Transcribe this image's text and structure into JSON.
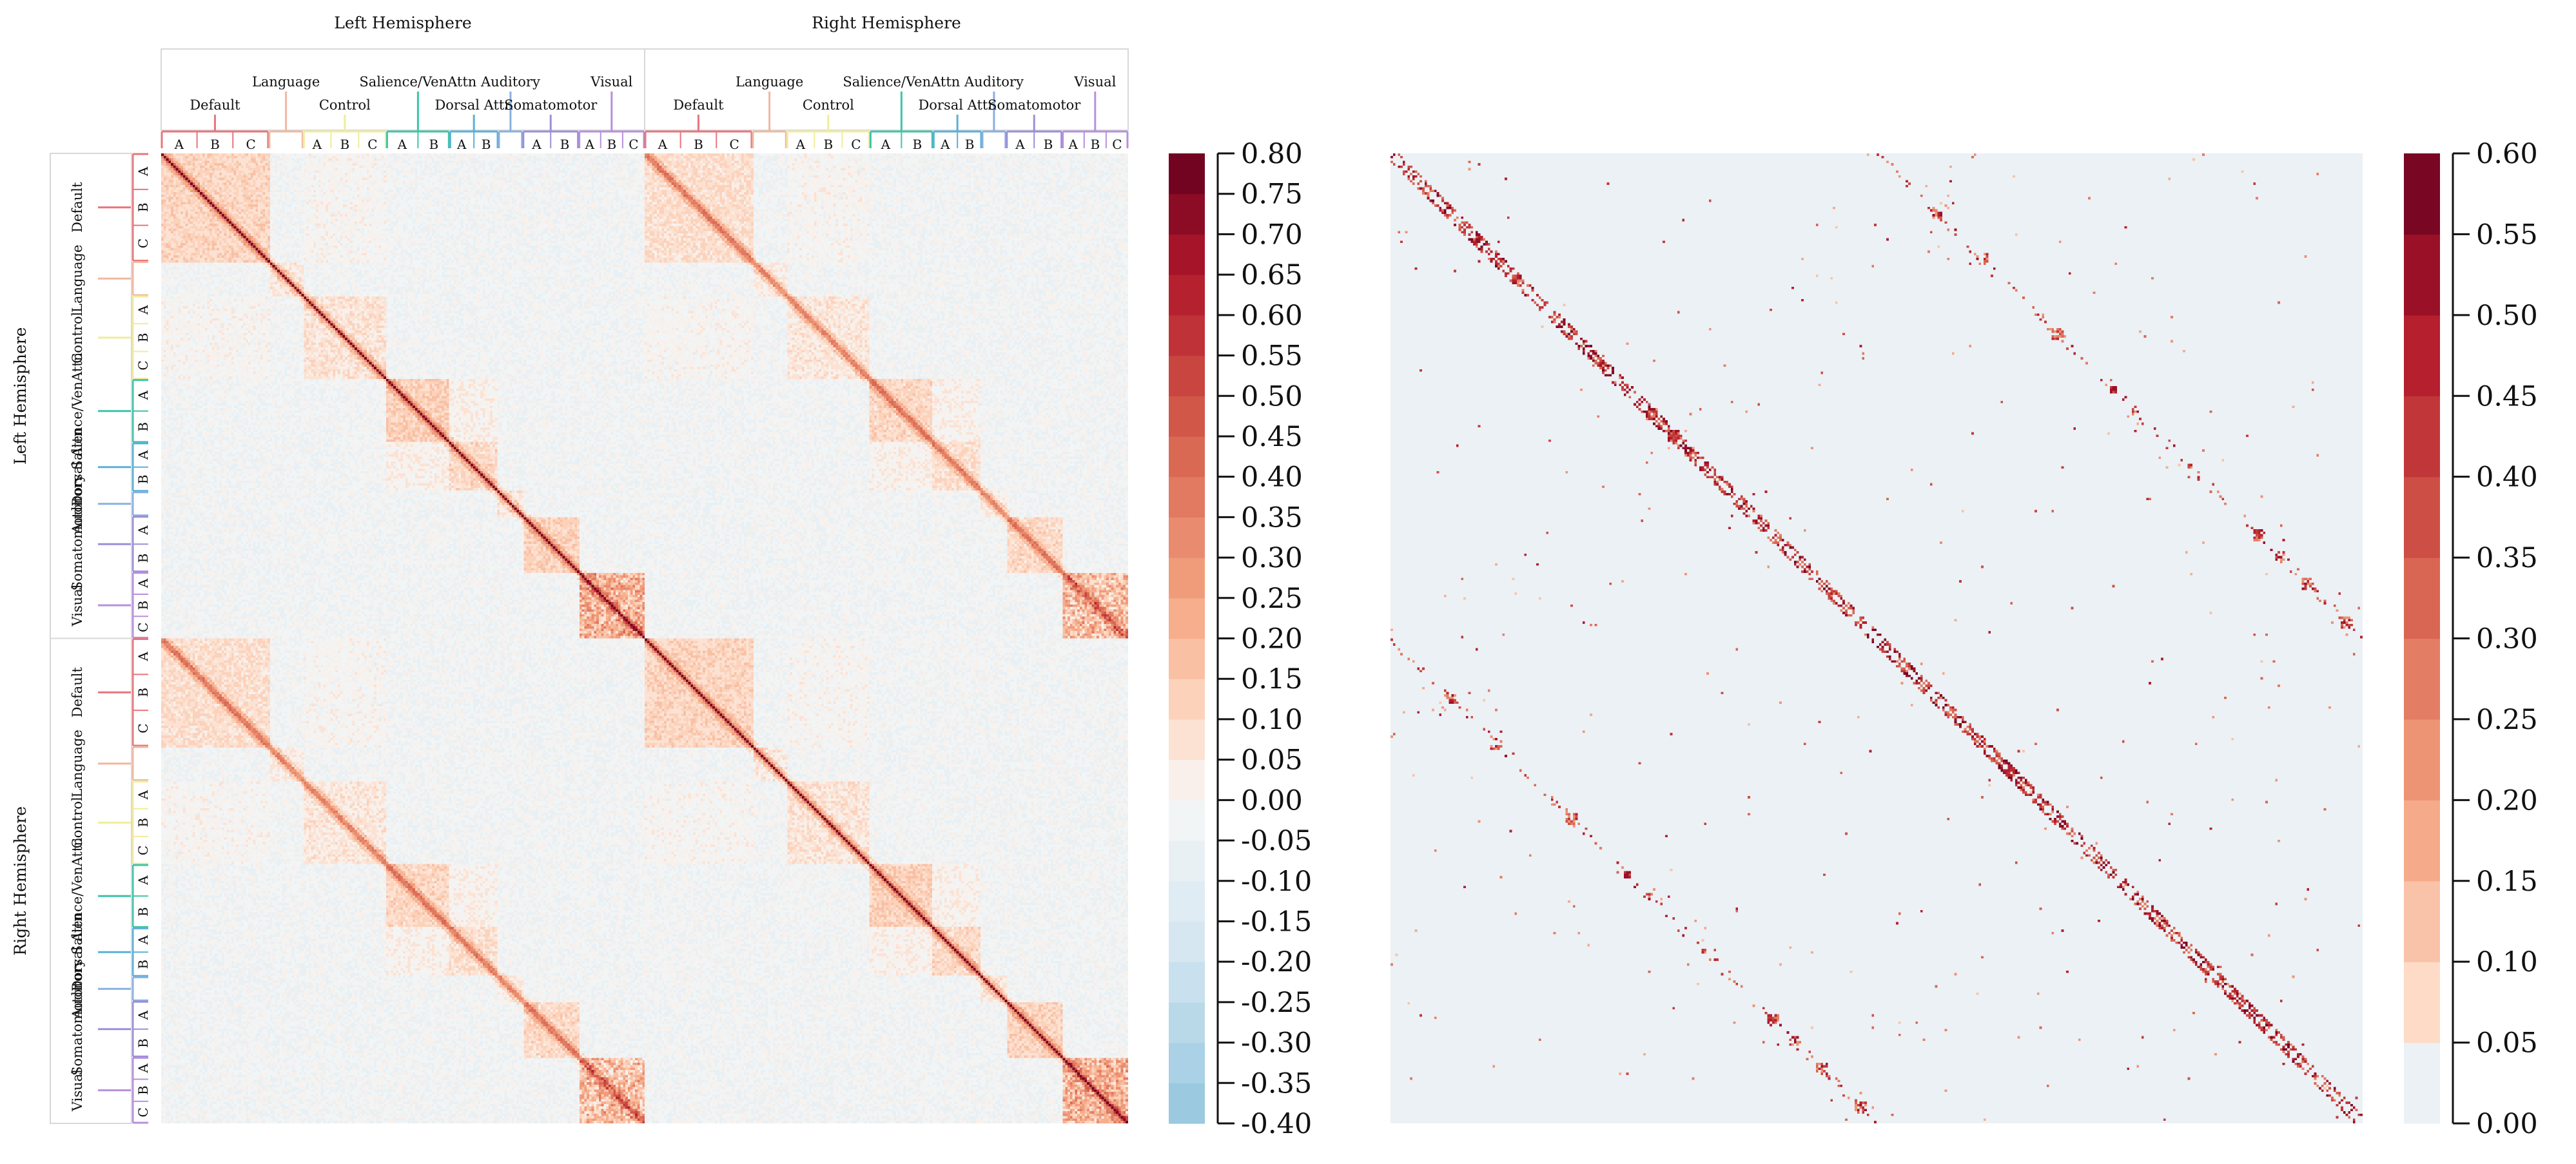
{
  "palette": {
    "Default": "#e8757c",
    "Language": "#f0b8a0",
    "Control": "#f2ec9a",
    "Salience/VenAttn": "#3fc4a8",
    "Dorsal Attn": "#5ab0d8",
    "Auditory": "#8ab0e0",
    "Somatomotor": "#9b8fd8",
    "Visual": "#b78fdc"
  },
  "chart_data": [
    {
      "type": "heatmap",
      "name": "left-matrix",
      "hemispheres": [
        "Left Hemisphere",
        "Right Hemisphere"
      ],
      "networks": [
        {
          "name": "Default",
          "subs": [
            "A",
            "B",
            "C"
          ],
          "weight": 7.5
        },
        {
          "name": "Language",
          "subs": [],
          "weight": 2.4
        },
        {
          "name": "Control",
          "subs": [
            "A",
            "B",
            "C"
          ],
          "weight": 5.8
        },
        {
          "name": "Salience/VenAttn",
          "subs": [
            "A",
            "B"
          ],
          "weight": 4.4
        },
        {
          "name": "Dorsal Attn",
          "subs": [
            "A",
            "B"
          ],
          "weight": 3.4
        },
        {
          "name": "Auditory",
          "subs": [],
          "weight": 1.7
        },
        {
          "name": "Somatomotor",
          "subs": [
            "A",
            "B"
          ],
          "weight": 3.9
        },
        {
          "name": "Visual",
          "subs": [
            "A",
            "B",
            "C"
          ],
          "weight": 4.6
        }
      ],
      "n_regions": 400,
      "colorbar": {
        "min": -0.4,
        "max": 0.8,
        "ticks": [
          "0.80",
          "0.75",
          "0.70",
          "0.65",
          "0.60",
          "0.55",
          "0.50",
          "0.45",
          "0.40",
          "0.35",
          "0.30",
          "0.25",
          "0.20",
          "0.15",
          "0.10",
          "0.05",
          "0.00",
          "-0.05",
          "-0.10",
          "-0.15",
          "-0.20",
          "-0.25",
          "-0.30",
          "-0.35",
          "-0.40"
        ]
      },
      "xlabel": "",
      "ylabel": ""
    },
    {
      "type": "heatmap",
      "name": "right-matrix",
      "n_regions": 400,
      "colorbar": {
        "min": 0.0,
        "max": 0.6,
        "ticks": [
          "0.60",
          "0.55",
          "0.50",
          "0.45",
          "0.40",
          "0.35",
          "0.30",
          "0.25",
          "0.20",
          "0.15",
          "0.10",
          "0.05",
          "0.00"
        ]
      },
      "xlabel": "",
      "ylabel": ""
    }
  ]
}
